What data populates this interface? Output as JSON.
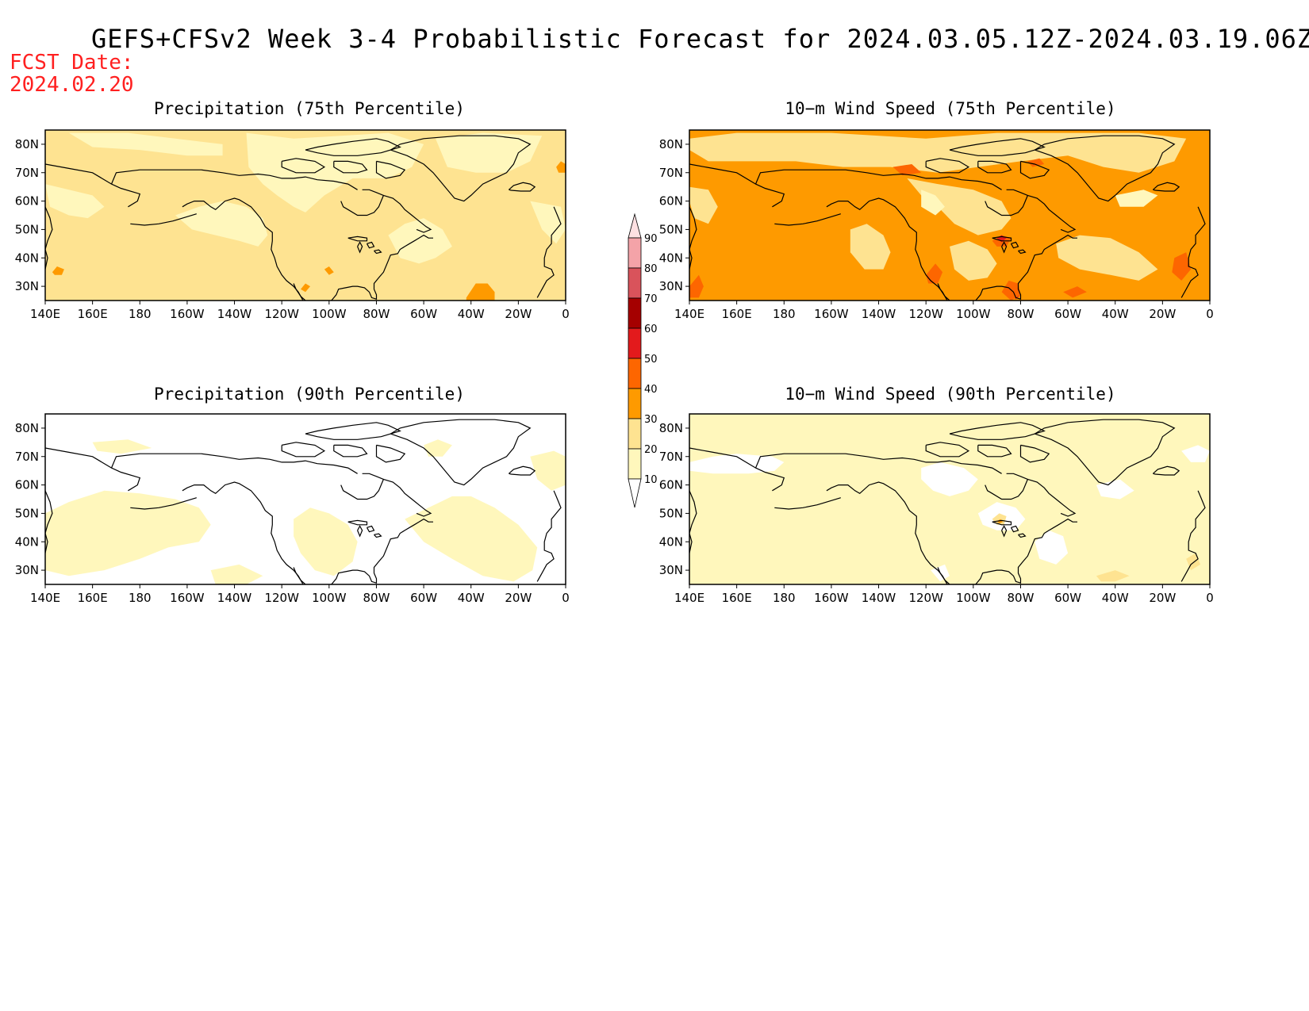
{
  "title": "GEFS+CFSv2 Week 3-4 Probabilistic Forecast for 2024.03.05.12Z-2024.03.19.06Z",
  "fcst_date_label": "FCST Date:",
  "fcst_date_value": "2024.02.20",
  "lon_ticks": [
    "140E",
    "160E",
    "180",
    "160W",
    "140W",
    "120W",
    "100W",
    "80W",
    "60W",
    "40W",
    "20W",
    "0"
  ],
  "lat_ticks": [
    "80N",
    "70N",
    "60N",
    "50N",
    "40N",
    "30N"
  ],
  "extent": {
    "lon_min_east": 140,
    "lon_max_east": 360,
    "lat_min": 25,
    "lat_max": 85
  },
  "colorbar": {
    "levels": [
      10,
      20,
      30,
      40,
      50,
      60,
      70,
      80,
      90
    ],
    "labels": [
      "10",
      "20",
      "30",
      "40",
      "50",
      "60",
      "70",
      "80",
      "90"
    ],
    "colors": [
      "#fff7bc",
      "#fee391",
      "#fe9a00",
      "#fd6600",
      "#e31a1c",
      "#a50000",
      "#d9535b",
      "#f4a3a8",
      "#fde0e2"
    ]
  },
  "panels": [
    {
      "id": "precip-75",
      "title": "Precipitation (75th Percentile)",
      "base_color": "#fee391",
      "dominant_category": "20-30"
    },
    {
      "id": "wind-75",
      "title": "10−m Wind Speed (75th Percentile)",
      "base_color": "#fe9a00",
      "dominant_category": "30-40"
    },
    {
      "id": "precip-90",
      "title": "Precipitation (90th Percentile)",
      "base_color": "#ffffff",
      "dominant_category": "<10"
    },
    {
      "id": "wind-90",
      "title": "10−m Wind Speed (90th Percentile)",
      "base_color": "#fff7bc",
      "dominant_category": "10-20"
    }
  ]
}
